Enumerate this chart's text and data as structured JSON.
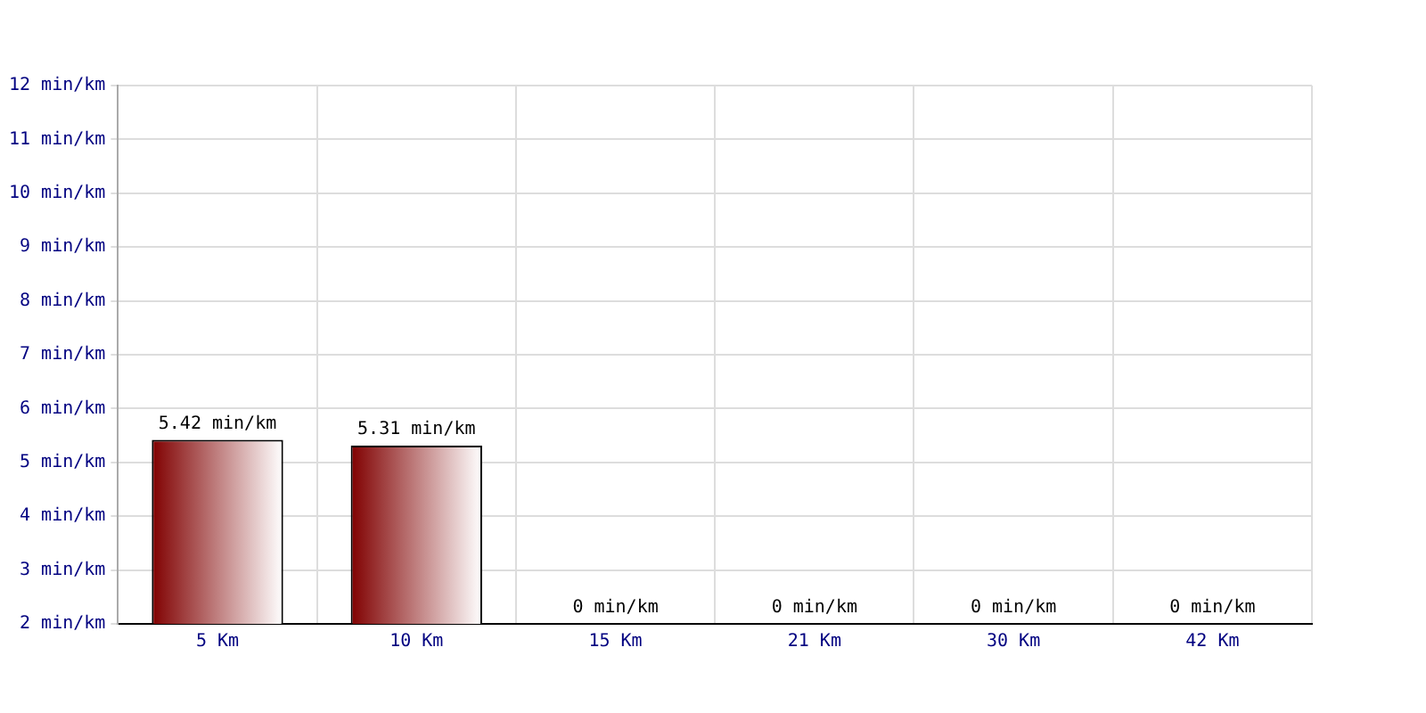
{
  "chart_data": {
    "type": "bar",
    "categories": [
      "5 Km",
      "10 Km",
      "15 Km",
      "21 Km",
      "30 Km",
      "42 Km"
    ],
    "values": [
      5.42,
      5.31,
      null,
      null,
      null,
      null
    ],
    "value_labels": [
      "5.42 min/km",
      "5.31 min/km",
      "0 min/km",
      "0 min/km",
      "0 min/km",
      "0 min/km"
    ],
    "color": "#800000",
    "ylim": [
      2,
      12
    ],
    "yticks": [
      {
        "value": 2,
        "label": "2 min/km"
      },
      {
        "value": 3,
        "label": "3 min/km"
      },
      {
        "value": 4,
        "label": "4 min/km"
      },
      {
        "value": 5,
        "label": "5 min/km"
      },
      {
        "value": 6,
        "label": "6 min/km"
      },
      {
        "value": 7,
        "label": "7 min/km"
      },
      {
        "value": 8,
        "label": "8 min/km"
      },
      {
        "value": 9,
        "label": "9 min/km"
      },
      {
        "value": 10,
        "label": "10 min/km"
      },
      {
        "value": 11,
        "label": "11 min/km"
      },
      {
        "value": 12,
        "label": "12 min/km"
      }
    ],
    "grid": true,
    "legend": false
  }
}
